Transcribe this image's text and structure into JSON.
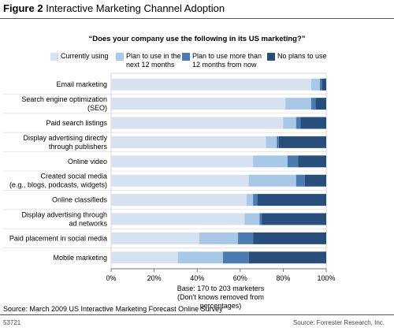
{
  "figure": {
    "number": "Figure 2",
    "title": "Interactive Marketing Channel Adoption",
    "source": "Source: March 2009 US Interactive Marketing Forecast Online Survey",
    "figure_id": "53721",
    "credit": "Source: Forrester Research, Inc."
  },
  "chart_data": {
    "type": "bar",
    "orientation": "horizontal",
    "stacked": true,
    "title": "“Does your company use the following in its US marketing?”",
    "categories": [
      "Email marketing",
      "Search engine optimization\n(SEO)",
      "Paid search listings",
      "Display advertising directly\nthrough publishers",
      "Online video",
      "Created social media\n(e.g., blogs, podcasts, widgets)",
      "Online classifieds",
      "Display advertising through\nad networks",
      "Paid placement in social media",
      "Mobile marketing"
    ],
    "series": [
      {
        "name": "Currently using",
        "color": "#d6e2ef",
        "values": [
          93,
          81,
          80,
          72,
          66,
          64,
          63,
          62,
          41,
          31
        ]
      },
      {
        "name": "Plan to use in the\nnext 12 months",
        "color": "#a9c8e8",
        "values": [
          4,
          12,
          6,
          5,
          16,
          22,
          3,
          7,
          18,
          21
        ]
      },
      {
        "name": "Plan to use more than\n12 months from now",
        "color": "#4b7bb0",
        "values": [
          1,
          2,
          2,
          1,
          5,
          4,
          2,
          1,
          7,
          12
        ]
      },
      {
        "name": "No plans to use",
        "color": "#284f7c",
        "values": [
          2,
          5,
          12,
          22,
          13,
          10,
          32,
          30,
          34,
          36
        ]
      }
    ],
    "xlim": [
      0,
      100
    ],
    "xticks": [
      "0%",
      "20%",
      "40%",
      "60%",
      "80%",
      "100%"
    ],
    "grid": false,
    "legend_position": "top",
    "base_note": "Base: 170 to 203 marketers\n(Don’t knows removed from percentages)"
  }
}
